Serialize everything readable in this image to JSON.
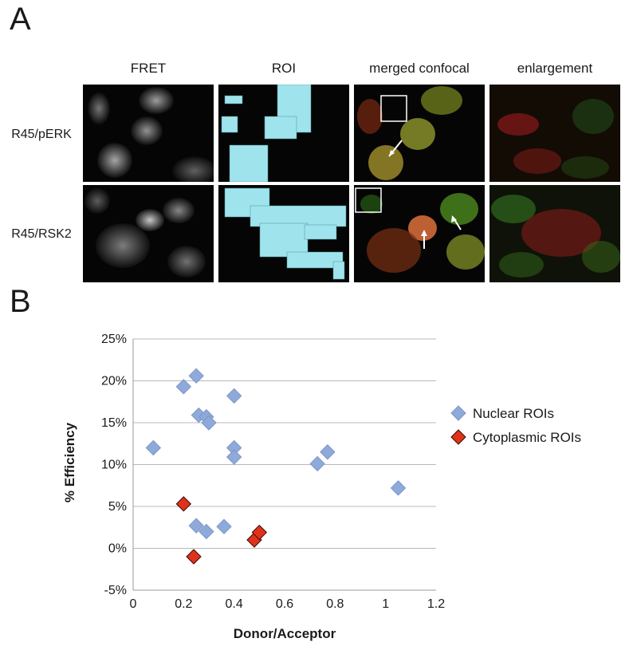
{
  "figure": {
    "panel_a_letter": "A",
    "panel_b_letter": "B",
    "columns": [
      "FRET",
      "ROI",
      "merged confocal",
      "enlargement"
    ],
    "rows": [
      "R45/pERK",
      "R45/RSK2"
    ]
  },
  "chart_data": {
    "type": "scatter",
    "title": "",
    "xlabel": "Donor/Acceptor",
    "ylabel": "% Efficiency",
    "xlim": [
      0,
      1.2
    ],
    "ylim": [
      -5,
      25
    ],
    "xticks": [
      "0",
      "0.2",
      "0.4",
      "0.6",
      "0.8",
      "1",
      "1.2"
    ],
    "yticks": [
      "-5%",
      "0%",
      "5%",
      "10%",
      "15%",
      "20%",
      "25%"
    ],
    "grid": "horizontal",
    "legend": "right",
    "series": [
      {
        "name": "Nuclear ROIs",
        "color": "#8eaadb",
        "marker": "diamond",
        "points": [
          [
            0.08,
            12.0
          ],
          [
            0.2,
            19.3
          ],
          [
            0.25,
            20.6
          ],
          [
            0.26,
            15.9
          ],
          [
            0.29,
            15.7
          ],
          [
            0.3,
            15.0
          ],
          [
            0.4,
            18.2
          ],
          [
            0.4,
            12.0
          ],
          [
            0.4,
            10.9
          ],
          [
            0.73,
            10.1
          ],
          [
            0.77,
            11.5
          ],
          [
            1.05,
            7.2
          ],
          [
            0.25,
            2.7
          ],
          [
            0.29,
            2.0
          ],
          [
            0.36,
            2.6
          ]
        ]
      },
      {
        "name": "Cytoplasmic ROIs",
        "color": "#e0321a",
        "marker": "diamond",
        "points": [
          [
            0.2,
            5.3
          ],
          [
            0.24,
            -1.0
          ],
          [
            0.48,
            1.0
          ],
          [
            0.5,
            1.9
          ]
        ]
      }
    ]
  }
}
